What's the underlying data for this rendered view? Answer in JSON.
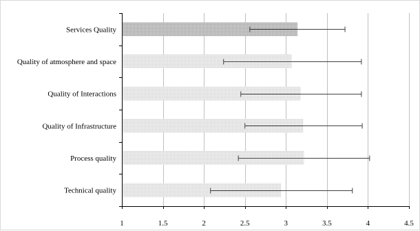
{
  "chart_data": {
    "type": "bar",
    "orientation": "horizontal",
    "categories": [
      "Services Quality",
      "Quality of atmosphere and space",
      "Quality of Interactions",
      "Quality of Infrastructure",
      "Process quality",
      "Technical quality"
    ],
    "values": [
      3.14,
      3.07,
      3.18,
      3.21,
      3.22,
      2.94
    ],
    "error_low": [
      2.56,
      2.24,
      2.45,
      2.5,
      2.42,
      2.08
    ],
    "error_high": [
      3.72,
      3.92,
      3.92,
      3.93,
      4.02,
      3.81
    ],
    "title": "",
    "xlabel": "",
    "ylabel": "",
    "xlim": [
      1,
      4.5
    ],
    "x_ticks": [
      "1",
      "1.5",
      "2",
      "2.5",
      "3",
      "3.5",
      "4",
      "4.5"
    ],
    "grid": "vertical",
    "legend": "none",
    "colors": {
      "highlight_bar": "#a6a6a6",
      "bar": "#d9d9d9",
      "error_bar": "#404040",
      "grid": "#bfbfbf",
      "axis": "#000000"
    }
  }
}
